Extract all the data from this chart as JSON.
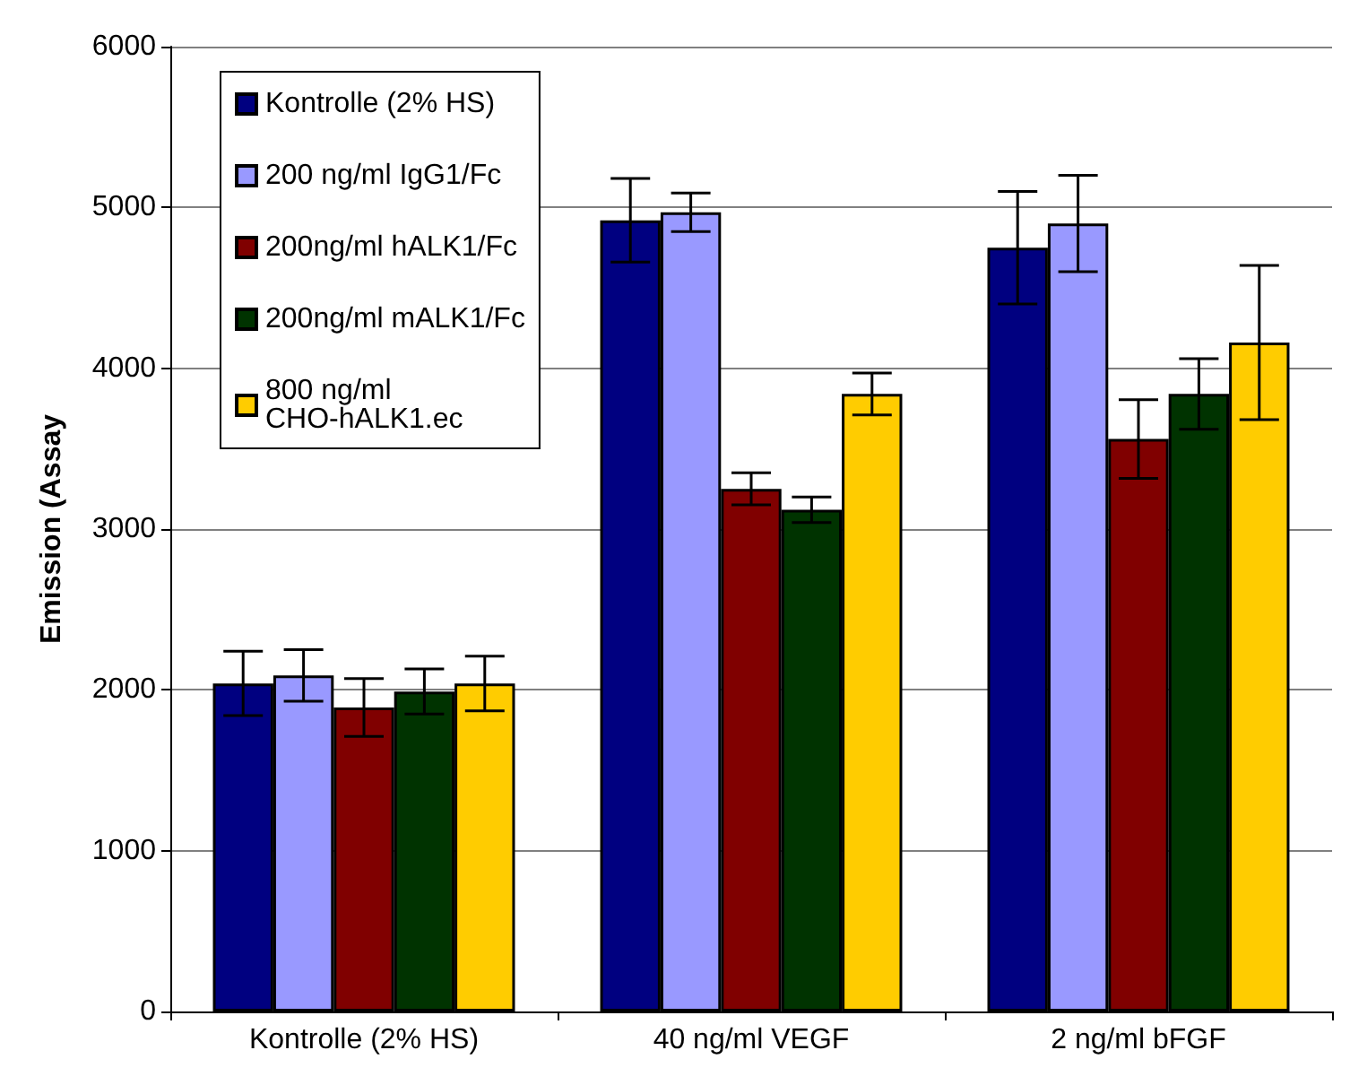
{
  "chart_data": {
    "type": "bar",
    "ylabel": "Emission (Assay",
    "categories": [
      "Kontrolle (2% HS)",
      "40 ng/ml VEGF",
      "2 ng/ml bFGF"
    ],
    "series": [
      {
        "name": "Kontrolle (2% HS)",
        "color": "#000080",
        "values": [
          2040,
          4920,
          4750
        ],
        "errors": [
          200,
          260,
          350
        ]
      },
      {
        "name": "200 ng/ml IgG1/Fc",
        "color": "#9999ff",
        "values": [
          2090,
          4970,
          4900
        ],
        "errors": [
          160,
          120,
          300
        ]
      },
      {
        "name": "200ng/ml hALK1/Fc",
        "color": "#800000",
        "values": [
          1890,
          3250,
          3560
        ],
        "errors": [
          180,
          100,
          245
        ]
      },
      {
        "name": "200ng/ml mALK1/Fc",
        "color": "#003300",
        "values": [
          1990,
          3120,
          3840
        ],
        "errors": [
          140,
          80,
          220
        ]
      },
      {
        "name": "800 ng/ml CHO-hALK1.ec",
        "color": "#ffcc00",
        "values": [
          2040,
          3840,
          4160
        ],
        "errors": [
          170,
          130,
          480
        ]
      }
    ],
    "ylim": [
      0,
      6000
    ],
    "yticks": [
      0,
      1000,
      2000,
      3000,
      4000,
      5000,
      6000
    ],
    "grid": "y",
    "legend": "top left"
  }
}
